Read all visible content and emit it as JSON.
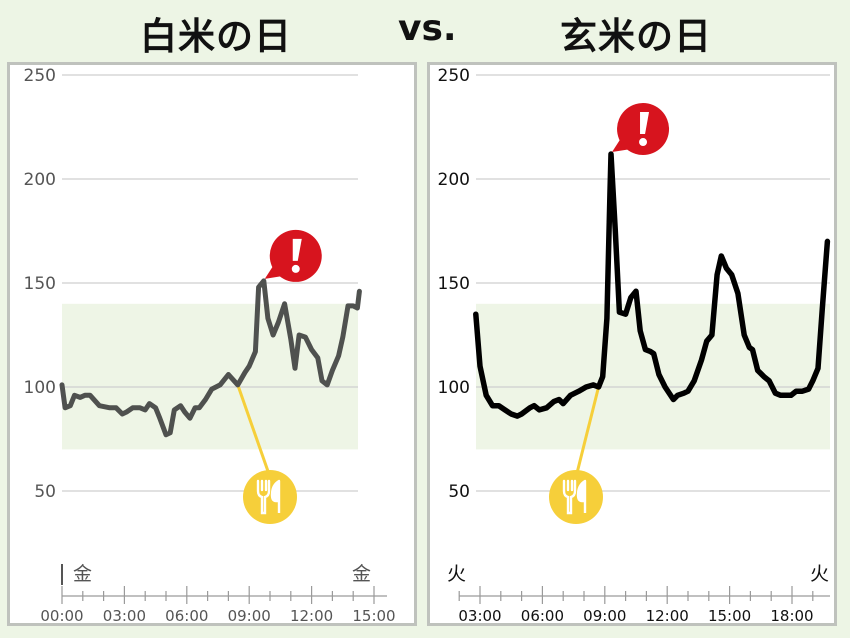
{
  "header": {
    "left_title": "白米の日",
    "vs": "vs.",
    "right_title": "玄米の日"
  },
  "chart_data": [
    {
      "type": "line",
      "title": "白米の日",
      "line_color": "#4f514f",
      "text_color": "#555555",
      "ylim": [
        25,
        255
      ],
      "yticks": [
        50,
        100,
        150,
        200,
        250
      ],
      "target_range": [
        70,
        140
      ],
      "target_range_color": "#eef5e6",
      "xticks": [
        "00:00",
        "03:00",
        "06:00",
        "09:00",
        "12:00",
        "15:00"
      ],
      "xtick_hours": [
        0,
        3,
        6,
        9,
        12,
        15
      ],
      "day_labels": [
        "金",
        "金"
      ],
      "grid": true,
      "meal_hour": 8.45,
      "alert_hour": 9.7,
      "x": [
        0,
        0.15,
        0.4,
        0.6,
        0.87,
        1.1,
        1.35,
        1.8,
        2.3,
        2.6,
        2.9,
        3.1,
        3.4,
        3.75,
        4,
        4.2,
        4.5,
        4.7,
        5,
        5.2,
        5.4,
        5.7,
        5.9,
        6.15,
        6.4,
        6.6,
        6.9,
        7.2,
        7.6,
        8,
        8.45,
        8.8,
        9,
        9.3,
        9.45,
        9.7,
        9.9,
        10.15,
        10.4,
        10.7,
        11,
        11.2,
        11.4,
        11.7,
        12,
        12.3,
        12.5,
        12.75,
        13,
        13.3,
        13.5,
        13.75,
        14,
        14.2,
        14.3
      ],
      "y": [
        101,
        90,
        91,
        96,
        95,
        96,
        96,
        91,
        90,
        90,
        87,
        88,
        90,
        90,
        89,
        92,
        90,
        85,
        77,
        78,
        89,
        91,
        88,
        85,
        90,
        90,
        94,
        99,
        101,
        106,
        101,
        107,
        110,
        117,
        148,
        151,
        133,
        125,
        131,
        140,
        123,
        109,
        125,
        124,
        118,
        114,
        103,
        101,
        108,
        115,
        124,
        139,
        139,
        138,
        146
      ]
    },
    {
      "type": "line",
      "title": "玄米の日",
      "line_color": "#000000",
      "text_color": "#111111",
      "ylim": [
        25,
        255
      ],
      "yticks": [
        50,
        100,
        150,
        200,
        250
      ],
      "target_range": [
        70,
        140
      ],
      "target_range_color": "#eef5e6",
      "xticks": [
        "03:00",
        "06:00",
        "09:00",
        "12:00",
        "15:00",
        "18:00"
      ],
      "xtick_hours": [
        3,
        6,
        9,
        12,
        15,
        18
      ],
      "day_labels": [
        "火",
        "火"
      ],
      "grid": true,
      "meal_hour": 8.7,
      "alert_hour": 9.3,
      "x": [
        2.8,
        3.0,
        3.3,
        3.6,
        3.9,
        4.2,
        4.5,
        4.8,
        5.0,
        5.4,
        5.6,
        5.85,
        6.2,
        6.55,
        6.8,
        7.0,
        7.35,
        7.75,
        8.1,
        8.45,
        8.7,
        8.9,
        9.1,
        9.25,
        9.3,
        9.5,
        9.7,
        10,
        10.25,
        10.5,
        10.7,
        10.95,
        11.2,
        11.35,
        11.6,
        11.9,
        12.3,
        12.5,
        12.8,
        13,
        13.3,
        13.65,
        13.9,
        14.15,
        14.4,
        14.6,
        14.85,
        15.1,
        15.4,
        15.7,
        15.95,
        16.1,
        16.35,
        16.65,
        16.9,
        17.2,
        17.45,
        17.95,
        18.2,
        18.5,
        18.8,
        19,
        19.25,
        19.45,
        19.7
      ],
      "y": [
        135,
        110,
        96,
        91,
        91,
        89,
        87,
        86,
        87,
        90,
        91,
        89,
        90,
        93,
        94,
        92,
        96,
        98,
        100,
        101,
        100,
        105,
        133,
        194,
        212,
        176,
        136,
        135,
        143,
        146,
        127,
        118,
        117,
        116,
        106,
        100,
        94,
        96,
        97,
        98,
        103,
        113,
        122,
        125,
        154,
        163,
        157,
        154,
        145,
        125,
        119,
        118,
        108,
        105,
        103,
        97,
        96,
        96,
        98,
        98,
        99,
        103,
        109,
        137,
        170
      ]
    }
  ],
  "colors": {
    "alert": "#d7141e",
    "meal": "#f6cf3a",
    "grid": "#cfcfcf",
    "axis": "#9a9a9a"
  },
  "icons": {
    "alert": "exclamation-icon",
    "meal": "fork-knife-icon"
  }
}
